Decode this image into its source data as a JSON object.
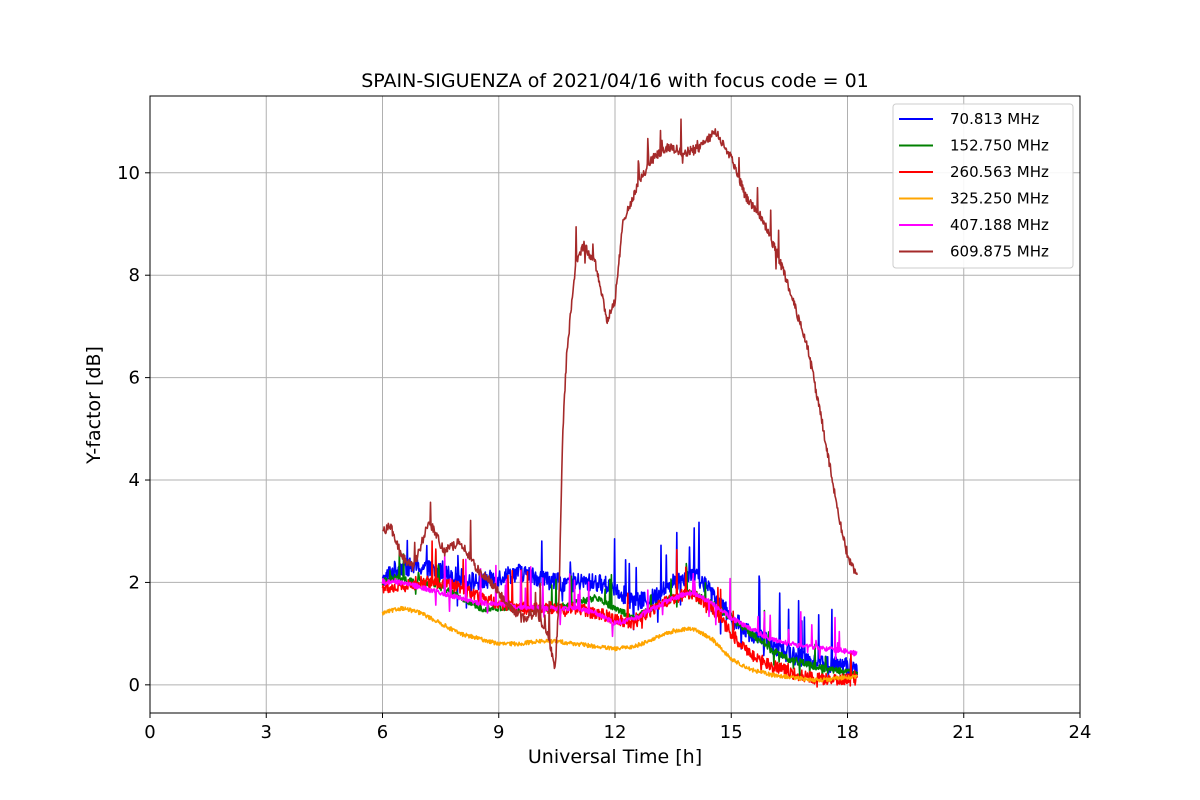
{
  "chart_data": {
    "type": "line",
    "title": "SPAIN-SIGUENZA of 2021/04/16 with focus code = 01",
    "xlabel": "Universal Time [h]",
    "ylabel": "Y-factor [dB]",
    "xlim": [
      0,
      24
    ],
    "ylim": [
      -0.55,
      11.5
    ],
    "xticks": [
      0,
      3,
      6,
      9,
      12,
      15,
      18,
      21,
      24
    ],
    "yticks": [
      0,
      2,
      4,
      6,
      8,
      10
    ],
    "grid": true,
    "legend_position": "top-right",
    "series": [
      {
        "name": " 70.813 MHz",
        "color": "#0000ff",
        "noise": 0.18,
        "spikes": 0.9,
        "x": [
          6.0,
          6.2,
          6.5,
          7.0,
          7.5,
          8.0,
          8.5,
          9.0,
          9.5,
          10.0,
          10.5,
          11.0,
          11.5,
          12.0,
          12.5,
          13.0,
          13.5,
          14.0,
          14.5,
          15.0,
          15.5,
          16.0,
          16.5,
          17.0,
          17.5,
          18.0,
          18.25
        ],
        "y": [
          2.0,
          2.2,
          2.3,
          2.3,
          2.2,
          2.1,
          2.0,
          2.1,
          2.2,
          2.1,
          2.0,
          2.0,
          2.0,
          1.9,
          1.6,
          1.7,
          2.0,
          2.2,
          1.8,
          1.3,
          1.0,
          0.8,
          0.6,
          0.5,
          0.4,
          0.35,
          0.3
        ]
      },
      {
        "name": "152.750 MHz",
        "color": "#008000",
        "noise": 0.07,
        "spikes": 0.5,
        "x": [
          6.0,
          6.3,
          6.8,
          7.3,
          8.0,
          8.5,
          9.0,
          9.5,
          10.0,
          10.5,
          11.0,
          11.5,
          12.0,
          12.5,
          13.0,
          13.5,
          14.0,
          14.5,
          15.0,
          15.5,
          16.0,
          16.5,
          17.0,
          17.5,
          18.0,
          18.25
        ],
        "y": [
          2.0,
          2.1,
          2.0,
          2.0,
          1.7,
          1.5,
          1.5,
          1.5,
          1.5,
          1.5,
          1.6,
          1.7,
          1.5,
          1.3,
          1.5,
          1.7,
          1.8,
          1.6,
          1.3,
          1.0,
          0.7,
          0.5,
          0.4,
          0.3,
          0.25,
          0.2
        ]
      },
      {
        "name": "260.563 MHz",
        "color": "#ff0000",
        "noise": 0.12,
        "spikes": 0.6,
        "x": [
          6.0,
          6.5,
          7.0,
          7.5,
          8.0,
          8.5,
          9.0,
          9.5,
          10.0,
          10.5,
          11.0,
          11.5,
          12.0,
          12.5,
          13.0,
          13.5,
          14.0,
          14.5,
          15.0,
          15.5,
          16.0,
          16.5,
          17.0,
          17.5,
          18.0,
          18.25
        ],
        "y": [
          1.9,
          1.9,
          2.0,
          2.0,
          1.9,
          1.7,
          1.6,
          1.5,
          1.5,
          1.5,
          1.5,
          1.4,
          1.3,
          1.2,
          1.5,
          1.7,
          1.8,
          1.5,
          1.0,
          0.6,
          0.4,
          0.25,
          0.15,
          0.1,
          0.1,
          0.1
        ]
      },
      {
        "name": "325.250 MHz",
        "color": "#ffa500",
        "noise": 0.04,
        "spikes": 0.0,
        "x": [
          6.0,
          6.5,
          7.0,
          7.5,
          8.0,
          8.5,
          9.0,
          9.5,
          10.0,
          10.5,
          11.0,
          11.5,
          12.0,
          12.5,
          13.0,
          13.5,
          14.0,
          14.5,
          15.0,
          15.5,
          16.0,
          16.5,
          17.0,
          17.5,
          18.0,
          18.25
        ],
        "y": [
          1.4,
          1.5,
          1.4,
          1.2,
          1.0,
          0.9,
          0.8,
          0.8,
          0.85,
          0.85,
          0.8,
          0.75,
          0.7,
          0.75,
          0.9,
          1.05,
          1.1,
          0.9,
          0.5,
          0.3,
          0.2,
          0.15,
          0.1,
          0.1,
          0.15,
          0.15
        ]
      },
      {
        "name": "407.188 MHz",
        "color": "#ff00ff",
        "noise": 0.05,
        "spikes": 0.6,
        "x": [
          6.0,
          6.5,
          7.0,
          7.5,
          8.0,
          8.5,
          9.0,
          9.5,
          10.0,
          10.5,
          11.0,
          11.5,
          12.0,
          12.5,
          13.0,
          13.5,
          14.0,
          14.5,
          15.0,
          15.5,
          16.0,
          16.5,
          17.0,
          17.5,
          18.0,
          18.25
        ],
        "y": [
          2.0,
          2.0,
          1.9,
          1.8,
          1.7,
          1.6,
          1.6,
          1.5,
          1.5,
          1.5,
          1.5,
          1.4,
          1.2,
          1.3,
          1.5,
          1.7,
          1.8,
          1.6,
          1.3,
          1.1,
          0.9,
          0.8,
          0.75,
          0.7,
          0.65,
          0.6
        ]
      },
      {
        "name": "609.875 MHz",
        "color": "#a52a2a",
        "noise": 0.09,
        "spikes": 0.5,
        "x": [
          6.0,
          6.2,
          6.5,
          6.8,
          7.2,
          7.6,
          8.0,
          8.4,
          8.8,
          9.2,
          9.6,
          10.0,
          10.3,
          10.45,
          10.55,
          10.65,
          10.75,
          10.85,
          11.0,
          11.2,
          11.5,
          11.8,
          12.0,
          12.2,
          12.6,
          13.0,
          13.4,
          13.8,
          14.2,
          14.6,
          15.0,
          15.4,
          15.8,
          16.2,
          16.6,
          17.0,
          17.4,
          17.8,
          18.0,
          18.25
        ],
        "y": [
          3.0,
          3.1,
          2.5,
          2.3,
          3.2,
          2.6,
          2.8,
          2.3,
          2.0,
          1.6,
          1.3,
          1.4,
          0.9,
          0.3,
          1.6,
          4.9,
          6.4,
          7.2,
          8.3,
          8.6,
          8.2,
          7.1,
          7.5,
          9.0,
          9.8,
          10.3,
          10.5,
          10.4,
          10.5,
          10.8,
          10.3,
          9.5,
          9.1,
          8.4,
          7.5,
          6.5,
          4.9,
          3.2,
          2.5,
          2.1
        ]
      }
    ]
  }
}
